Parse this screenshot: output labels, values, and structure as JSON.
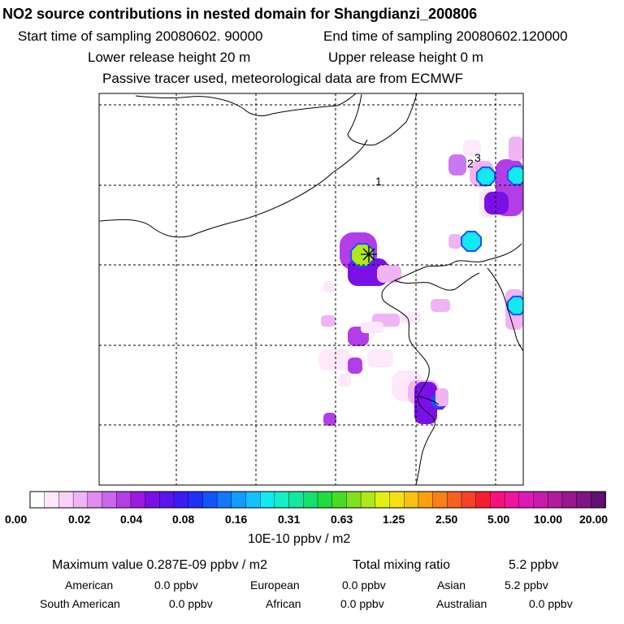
{
  "header": {
    "title": "NO2 source contributions in nested domain for Shangdianzi_200806",
    "start_label": "Start time of sampling 20080602. 90000",
    "end_label": "End time of sampling 20080602.120000",
    "lower_label": "Lower release height   20 m",
    "upper_label": "Upper release height    0 m",
    "note": "Passive tracer used, meteorological data are from ECMWF"
  },
  "chart_data": {
    "type": "heatmap",
    "title": "NO2 source contributions in nested domain for Shangdianzi_200806",
    "unit_label": "10E-10 ppbv / m2",
    "legend_ticks": [
      "0.00",
      "0.02",
      "0.04",
      "0.08",
      "0.16",
      "0.31",
      "0.63",
      "1.25",
      "2.50",
      "5.00",
      "10.00",
      "20.00"
    ],
    "legend_colors": [
      "#ffffff",
      "#fde8fc",
      "#f8d0f8",
      "#f0b4f4",
      "#e08cf0",
      "#cc66ee",
      "#b33ee8",
      "#9a1ae0",
      "#7a10e6",
      "#5a14ee",
      "#3c1cf4",
      "#2030f8",
      "#1454ff",
      "#1478ff",
      "#149cff",
      "#14c0ff",
      "#14e8f0",
      "#14f0c8",
      "#14e8a0",
      "#14e070",
      "#20dc40",
      "#48dc20",
      "#80e01c",
      "#b0e818",
      "#e0f010",
      "#f8e010",
      "#f8c010",
      "#f8a010",
      "#f88018",
      "#f86020",
      "#f84028",
      "#f81c30",
      "#f8107c",
      "#f014a0",
      "#e018b4",
      "#c81ca8",
      "#b01c9c",
      "#981890",
      "#801484",
      "#601070"
    ],
    "field_level": {
      "faint": "0.02",
      "light": "0.04",
      "medium": "0.08",
      "strong": "0.16",
      "peak": "0.63"
    },
    "station_symbol": "asterisk",
    "map_labels": [
      "1",
      "2",
      "3"
    ]
  },
  "summary": {
    "max_label": "Maximum value  0.287E-09 ppbv / m2",
    "total_label": "Total mixing ratio",
    "total_value": "5.2 ppbv",
    "american_label": "American",
    "american_value": "0.0 ppbv",
    "european_label": "European",
    "european_value": "0.0 ppbv",
    "asian_label": "Asian",
    "asian_value": "5.2 ppbv",
    "south_american_label": "South American",
    "south_american_value": "0.0 ppbv",
    "african_label": "African",
    "african_value": "0.0 ppbv",
    "australian_label": "Australian",
    "australian_value": "0.0 ppbv"
  }
}
